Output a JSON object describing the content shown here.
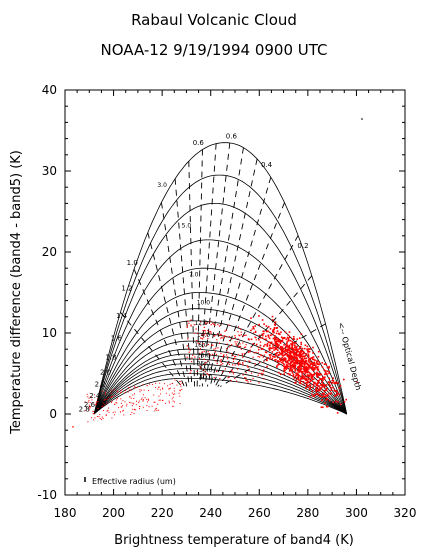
{
  "chart_data": {
    "type": "scatter",
    "title": "Rabaul Volcanic Cloud",
    "subtitle": "NOAA-12 9/19/1994 0900 UTC",
    "xlabel": "Brightness temperature of band4 (K)",
    "ylabel": "Temperature difference (band4 - band5) (K)",
    "xlim": [
      180,
      320
    ],
    "ylim": [
      -10,
      40
    ],
    "x_ticks": [
      "180",
      "200",
      "220",
      "240",
      "260",
      "280",
      "300",
      "320"
    ],
    "y_ticks": [
      "-10",
      "0",
      "10",
      "20",
      "30",
      "40"
    ],
    "grid": false,
    "legend_note": "Effective radius (um)",
    "optical_depth_label": "<-- Optical Depth",
    "radius_curve_labels": [
      "0.6",
      "1.0",
      "1.2",
      "1.4",
      "1.6",
      "1.8",
      "2.0",
      "2.2",
      "2.4",
      "2.6",
      "2.8"
    ],
    "radius_curve_peaks": [
      33.5,
      29.5,
      26,
      21.5,
      18,
      15,
      13,
      11.5,
      10,
      9,
      8
    ],
    "interior_labels": [
      "3.0",
      "5.0",
      "7.0",
      "10.0",
      "12.0",
      "14.0",
      "16.0",
      "20.0",
      "25.0",
      "30.0",
      "40.0"
    ],
    "optical_depth_labels": [
      "0.6",
      "0.4",
      "0.2"
    ],
    "curve_endpoints": {
      "cold_x": 192,
      "warm_x": 296,
      "cold_y": 0,
      "warm_y": 0
    },
    "series": [
      {
        "color": "#ff0000",
        "cluster_center": [
          277,
          7
        ],
        "cluster_spread": [
          12,
          3.5
        ]
      },
      {
        "color": "#ff0000",
        "cluster_center": [
          210,
          1.5
        ],
        "cluster_spread": [
          18,
          2.5
        ]
      }
    ]
  }
}
